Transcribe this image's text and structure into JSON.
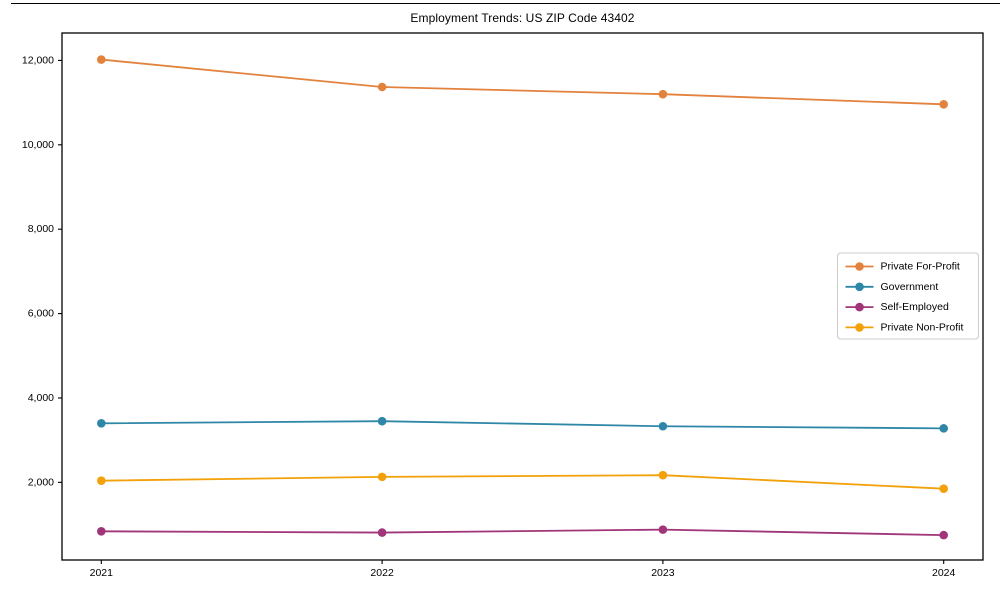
{
  "chart_data": {
    "type": "line",
    "title": "Employment Trends: US ZIP Code 43402",
    "xlabel": "",
    "ylabel": "",
    "x": [
      2021,
      2022,
      2023,
      2024
    ],
    "x_tick_labels": [
      "2021",
      "2022",
      "2023",
      "2024"
    ],
    "y_ticks": [
      2000,
      4000,
      6000,
      8000,
      10000,
      12000
    ],
    "y_tick_labels": [
      "2,000",
      "4,000",
      "6,000",
      "8,000",
      "10,000",
      "12,000"
    ],
    "xlim": [
      2020.86,
      2024.14
    ],
    "ylim": [
      160,
      12650
    ],
    "grid": false,
    "legend_position": "center-right",
    "series": [
      {
        "name": "Private For-Profit",
        "color": "#E2823D",
        "values": [
          12020,
          11370,
          11200,
          10960
        ]
      },
      {
        "name": "Government",
        "color": "#2F87A8",
        "values": [
          3400,
          3450,
          3330,
          3280
        ]
      },
      {
        "name": "Self-Employed",
        "color": "#A13579",
        "values": [
          840,
          810,
          880,
          750
        ]
      },
      {
        "name": "Private Non-Profit",
        "color": "#F2A10A",
        "values": [
          2040,
          2130,
          2170,
          1850
        ]
      }
    ],
    "marker": "circle",
    "marker_radius": 4.3,
    "line_width": 1.8,
    "axis_color": "#000000",
    "background_color": "#ffffff",
    "legend_border_color": "#cccccc"
  }
}
